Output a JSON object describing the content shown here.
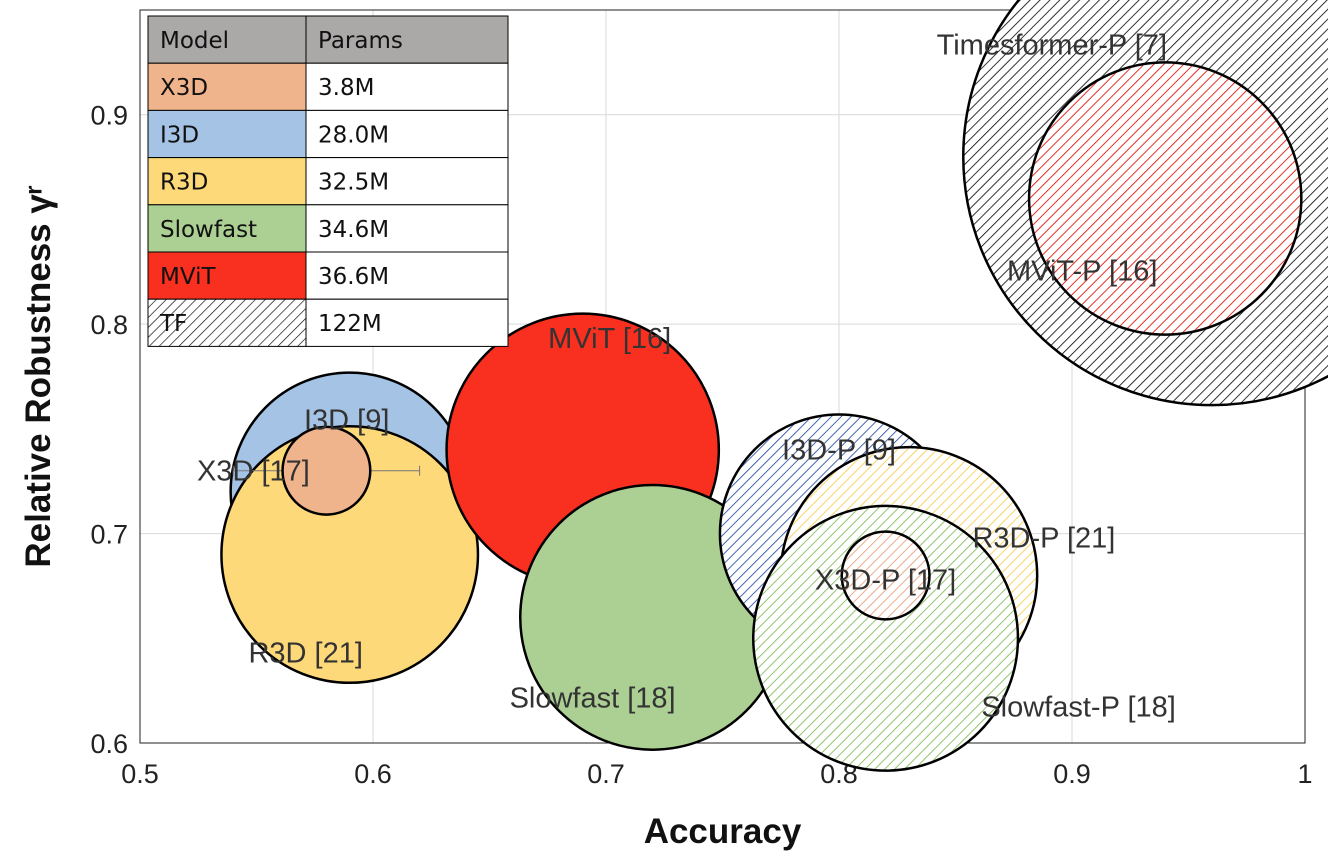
{
  "chart_data": {
    "type": "scatter",
    "title": "",
    "xlabel": "Accuracy",
    "ylabel": "Relative Robustness γʳ",
    "xlim": [
      0.5,
      1.0
    ],
    "ylim": [
      0.6,
      0.95
    ],
    "xticks": [
      "0.5",
      "0.6",
      "0.7",
      "0.8",
      "0.9",
      "1"
    ],
    "yticks": [
      "0.6",
      "0.7",
      "0.8",
      "0.9"
    ],
    "grid": true,
    "legend": {
      "placement": "top-left",
      "header": [
        "Model",
        "Params"
      ],
      "rows": [
        {
          "model": "X3D",
          "params": "3.8M",
          "color": "#F0B48C",
          "hatched": false
        },
        {
          "model": "I3D",
          "params": "28.0M",
          "color": "#A5C3E4",
          "hatched": false
        },
        {
          "model": "R3D",
          "params": "32.5M",
          "color": "#FED979",
          "hatched": false
        },
        {
          "model": "Slowfast",
          "params": "34.6M",
          "color": "#ACD093",
          "hatched": false
        },
        {
          "model": "MViT",
          "params": "36.6M",
          "color": "#F92F1F",
          "hatched": false
        },
        {
          "model": "TF",
          "params": "122M",
          "color": "#000000",
          "hatched": true
        }
      ]
    },
    "points": [
      {
        "label": "I3D [9]",
        "x": 0.59,
        "y": 0.72,
        "err": 0.03,
        "params": 28.0,
        "color": "#A5C3E4",
        "hatched": false
      },
      {
        "label": "R3D [21]",
        "x": 0.59,
        "y": 0.69,
        "err": 0.03,
        "params": 32.5,
        "color": "#FED979",
        "hatched": false
      },
      {
        "label": "X3D [17]",
        "x": 0.58,
        "y": 0.73,
        "err": 0.04,
        "params": 3.8,
        "color": "#F0B48C",
        "hatched": false
      },
      {
        "label": "MViT [16]",
        "x": 0.69,
        "y": 0.74,
        "err": 0.04,
        "params": 36.6,
        "color": "#F92F1F",
        "hatched": false
      },
      {
        "label": "Slowfast [18]",
        "x": 0.72,
        "y": 0.66,
        "err": 0.04,
        "params": 34.6,
        "color": "#ACD093",
        "hatched": false
      },
      {
        "label": "I3D-P [9]",
        "x": 0.8,
        "y": 0.7,
        "err": 0.04,
        "params": 28.0,
        "color": "#2E56A8",
        "hatched": true
      },
      {
        "label": "R3D-P [21]",
        "x": 0.83,
        "y": 0.68,
        "err": 0.04,
        "params": 32.5,
        "color": "#F9CE55",
        "hatched": true
      },
      {
        "label": "Slowfast-P [18]",
        "x": 0.82,
        "y": 0.65,
        "err": 0.04,
        "params": 34.6,
        "color": "#86BE60",
        "hatched": true
      },
      {
        "label": "X3D-P [17]",
        "x": 0.82,
        "y": 0.68,
        "err": 0.0,
        "params": 3.8,
        "color": "#E9A27C",
        "hatched": true
      },
      {
        "label": "Timesformer-P [7]",
        "x": 0.96,
        "y": 0.88,
        "err": 0.0,
        "params": 122,
        "color": "#000000",
        "hatched": true
      },
      {
        "label": "MViT-P [16]",
        "x": 0.94,
        "y": 0.86,
        "err": 0.04,
        "params": 36.6,
        "color": "#E21A10",
        "hatched": true
      }
    ]
  }
}
